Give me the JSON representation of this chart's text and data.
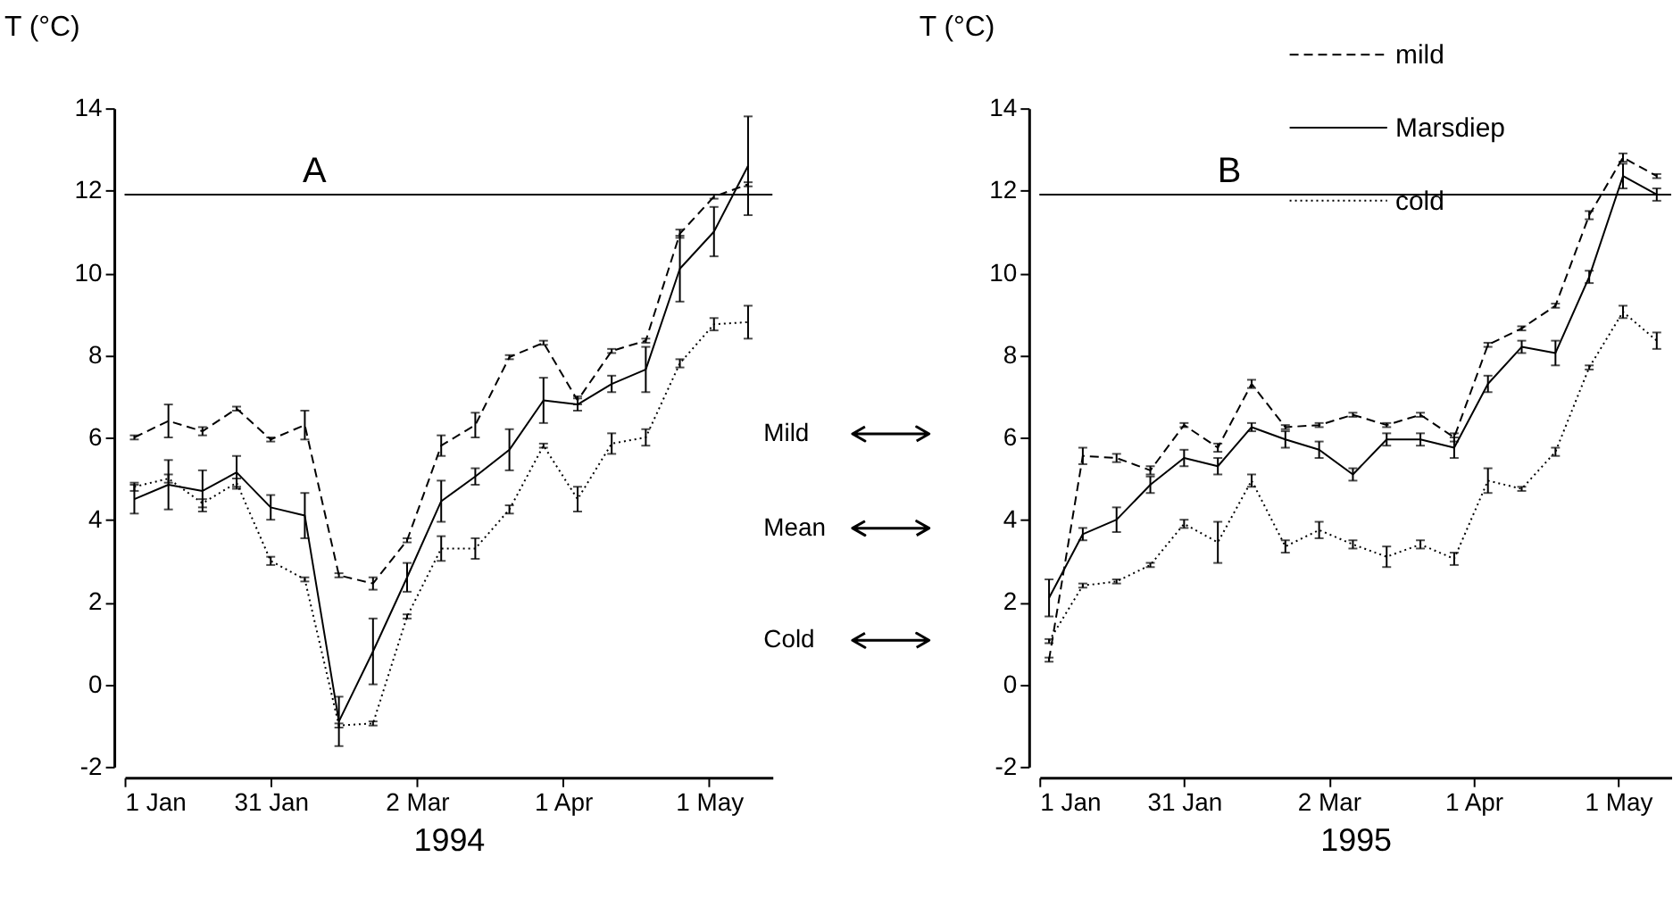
{
  "chart_data": [
    {
      "type": "line",
      "xlabel": "1994",
      "ylabel": "T (°C)",
      "legend": false,
      "grid": false,
      "x": [
        "1994-01-03",
        "1994-01-10",
        "1994-01-17",
        "1994-01-24",
        "1994-01-31",
        "1994-02-07",
        "1994-02-14",
        "1994-02-21",
        "1994-02-28",
        "1994-03-07",
        "1994-03-14",
        "1994-03-21",
        "1994-03-28",
        "1994-04-04",
        "1994-04-11",
        "1994-04-18",
        "1994-04-25",
        "1994-05-02",
        "1994-05-09"
      ],
      "xlim": [
        "1994-01-01",
        "1994-05-14"
      ],
      "xticks": [
        {
          "value": "1994-01-01",
          "label": "1 Jan"
        },
        {
          "value": "1994-01-31",
          "label": "31 Jan"
        },
        {
          "value": "1994-03-02",
          "label": "2 Mar"
        },
        {
          "value": "1994-04-01",
          "label": "1 Apr"
        },
        {
          "value": "1994-05-01",
          "label": "1 May"
        }
      ],
      "ylim": [
        -2,
        14
      ],
      "yticks": [
        -2,
        0,
        2,
        4,
        6,
        8,
        10,
        12,
        14
      ],
      "series": [
        {
          "color": "#000000",
          "line_style": "dashed",
          "values": [
            6.0,
            6.4,
            6.15,
            6.7,
            5.95,
            6.3,
            2.65,
            2.45,
            3.5,
            5.8,
            6.3,
            7.95,
            8.3,
            6.9,
            8.1,
            8.35,
            10.95,
            11.85,
            12.15
          ],
          "errors": [
            0.05,
            0.4,
            0.1,
            0.05,
            0.05,
            0.35,
            0.05,
            0.15,
            0.05,
            0.25,
            0.3,
            0.05,
            0.05,
            0.1,
            0.05,
            0.05,
            0.1,
            0.05,
            0.05
          ]
        },
        {
          "color": "#000000",
          "line_style": "solid",
          "values": [
            4.5,
            4.85,
            4.7,
            5.15,
            4.3,
            4.1,
            -0.9,
            0.8,
            2.6,
            4.45,
            5.05,
            5.7,
            6.9,
            6.8,
            7.3,
            7.65,
            10.1,
            11.0,
            12.6
          ],
          "errors": [
            0.35,
            0.6,
            0.5,
            0.4,
            0.3,
            0.55,
            0.6,
            0.8,
            0.35,
            0.5,
            0.2,
            0.5,
            0.55,
            0.15,
            0.2,
            0.55,
            0.8,
            0.6,
            1.2
          ]
        },
        {
          "color": "#000000",
          "line_style": "dotted",
          "values": [
            4.8,
            5.0,
            4.4,
            4.9,
            3.0,
            2.55,
            -1.0,
            -0.95,
            1.65,
            3.3,
            3.3,
            4.25,
            5.8,
            4.5,
            5.85,
            6.0,
            7.8,
            8.75,
            8.8
          ],
          "errors": [
            0.1,
            0.1,
            0.1,
            0.1,
            0.1,
            0.05,
            0.05,
            0.05,
            0.05,
            0.3,
            0.25,
            0.1,
            0.05,
            0.3,
            0.25,
            0.2,
            0.1,
            0.15,
            0.4
          ]
        }
      ],
      "ref_lines": [
        {
          "axis": "y",
          "value": 11.9,
          "label": "A"
        }
      ]
    },
    {
      "type": "line",
      "xlabel": "1995",
      "ylabel": "T (°C)",
      "legend": "top right",
      "grid": false,
      "x": [
        "1995-01-03",
        "1995-01-10",
        "1995-01-17",
        "1995-01-24",
        "1995-01-31",
        "1995-02-07",
        "1995-02-14",
        "1995-02-21",
        "1995-02-28",
        "1995-03-07",
        "1995-03-14",
        "1995-03-21",
        "1995-03-28",
        "1995-04-04",
        "1995-04-11",
        "1995-04-18",
        "1995-04-25",
        "1995-05-02",
        "1995-05-09"
      ],
      "xlim": [
        "1995-01-01",
        "1995-05-12"
      ],
      "xticks": [
        {
          "value": "1995-01-01",
          "label": "1 Jan"
        },
        {
          "value": "1995-01-31",
          "label": "31 Jan"
        },
        {
          "value": "1995-03-02",
          "label": "2 Mar"
        },
        {
          "value": "1995-04-01",
          "label": "1 Apr"
        },
        {
          "value": "1995-05-01",
          "label": "1 May"
        }
      ],
      "ylim": [
        -2,
        14
      ],
      "yticks": [
        -2,
        0,
        2,
        4,
        6,
        8,
        10,
        12,
        14
      ],
      "series": [
        {
          "name": "mild",
          "color": "#000000",
          "line_style": "dashed",
          "values": [
            0.6,
            5.55,
            5.5,
            5.2,
            6.3,
            5.75,
            7.3,
            6.25,
            6.3,
            6.55,
            6.3,
            6.55,
            6.0,
            8.25,
            8.65,
            9.2,
            11.4,
            12.8,
            12.35
          ],
          "errors": [
            0.05,
            0.2,
            0.1,
            0.1,
            0.05,
            0.1,
            0.1,
            0.05,
            0.05,
            0.05,
            0.05,
            0.05,
            0.1,
            0.05,
            0.05,
            0.05,
            0.1,
            0.1,
            0.05
          ]
        },
        {
          "name": "Marsdiep",
          "color": "#000000",
          "line_style": "solid",
          "values": [
            2.1,
            3.65,
            4.0,
            4.85,
            5.5,
            5.3,
            6.25,
            5.95,
            5.7,
            5.1,
            5.95,
            5.95,
            5.75,
            7.3,
            8.2,
            8.05,
            9.9,
            12.35,
            11.9
          ],
          "errors": [
            0.45,
            0.15,
            0.3,
            0.2,
            0.2,
            0.2,
            0.1,
            0.2,
            0.2,
            0.15,
            0.15,
            0.15,
            0.25,
            0.2,
            0.15,
            0.3,
            0.15,
            0.3,
            0.15
          ]
        },
        {
          "name": "cold",
          "color": "#000000",
          "line_style": "dotted",
          "values": [
            1.05,
            2.4,
            2.5,
            2.9,
            3.9,
            3.45,
            4.95,
            3.35,
            3.75,
            3.4,
            3.1,
            3.4,
            3.05,
            4.95,
            4.75,
            5.65,
            7.7,
            9.05,
            8.35
          ],
          "errors": [
            0.05,
            0.05,
            0.05,
            0.05,
            0.1,
            0.5,
            0.15,
            0.15,
            0.2,
            0.1,
            0.25,
            0.1,
            0.15,
            0.3,
            0.05,
            0.1,
            0.05,
            0.15,
            0.2
          ]
        }
      ],
      "ref_lines": [
        {
          "axis": "y",
          "value": 11.9,
          "label": "B"
        }
      ],
      "annotations": [
        "Mild",
        "Mean",
        "Cold"
      ]
    }
  ]
}
